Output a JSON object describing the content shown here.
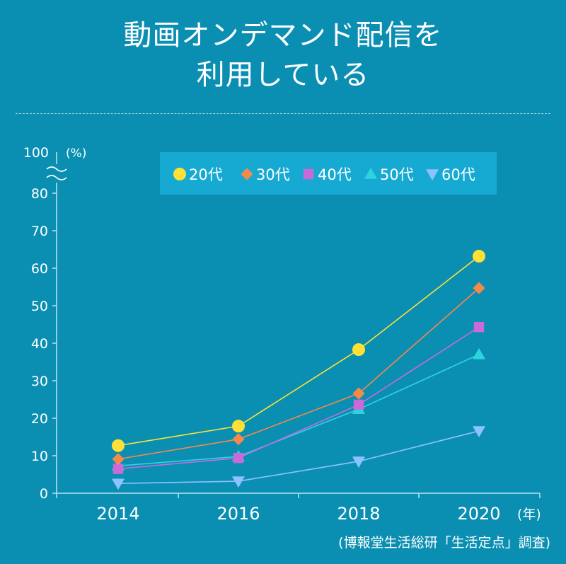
{
  "title_line1": "動画オンデマンド配信を",
  "title_line2": "利用している",
  "source": "(博報堂生活総研「生活定点」調査)",
  "colors": {
    "background": "#0a8fb2",
    "legend_bg": "#16aad3",
    "20s": "#ffe135",
    "30s": "#f5894a",
    "40s": "#c96ad8",
    "50s": "#2fd3df",
    "60s": "#8cc3ff"
  },
  "chart_data": {
    "type": "line",
    "x": [
      "2014",
      "2016",
      "2018",
      "2020"
    ],
    "xlabel": "(年)",
    "ylabel": "(%)",
    "y_break_label": "100",
    "ylim": [
      0,
      80
    ],
    "yticks": [
      0,
      10,
      20,
      30,
      40,
      50,
      60,
      70,
      80
    ],
    "legend_position": "top",
    "series": [
      {
        "name": "20代",
        "marker": "circle",
        "color": "#ffe135",
        "values": [
          12.7,
          17.9,
          38.3,
          63.2
        ]
      },
      {
        "name": "30代",
        "marker": "diamond",
        "color": "#f5894a",
        "values": [
          9.1,
          14.4,
          26.6,
          54.7
        ]
      },
      {
        "name": "40代",
        "marker": "square",
        "color": "#c96ad8",
        "values": [
          6.5,
          9.4,
          23.6,
          44.3
        ]
      },
      {
        "name": "50代",
        "marker": "triangle-up",
        "color": "#2fd3df",
        "values": [
          7.3,
          9.8,
          22.4,
          37.0
        ]
      },
      {
        "name": "60代",
        "marker": "triangle-down",
        "color": "#8cc3ff",
        "values": [
          2.6,
          3.2,
          8.5,
          16.6
        ]
      }
    ]
  }
}
